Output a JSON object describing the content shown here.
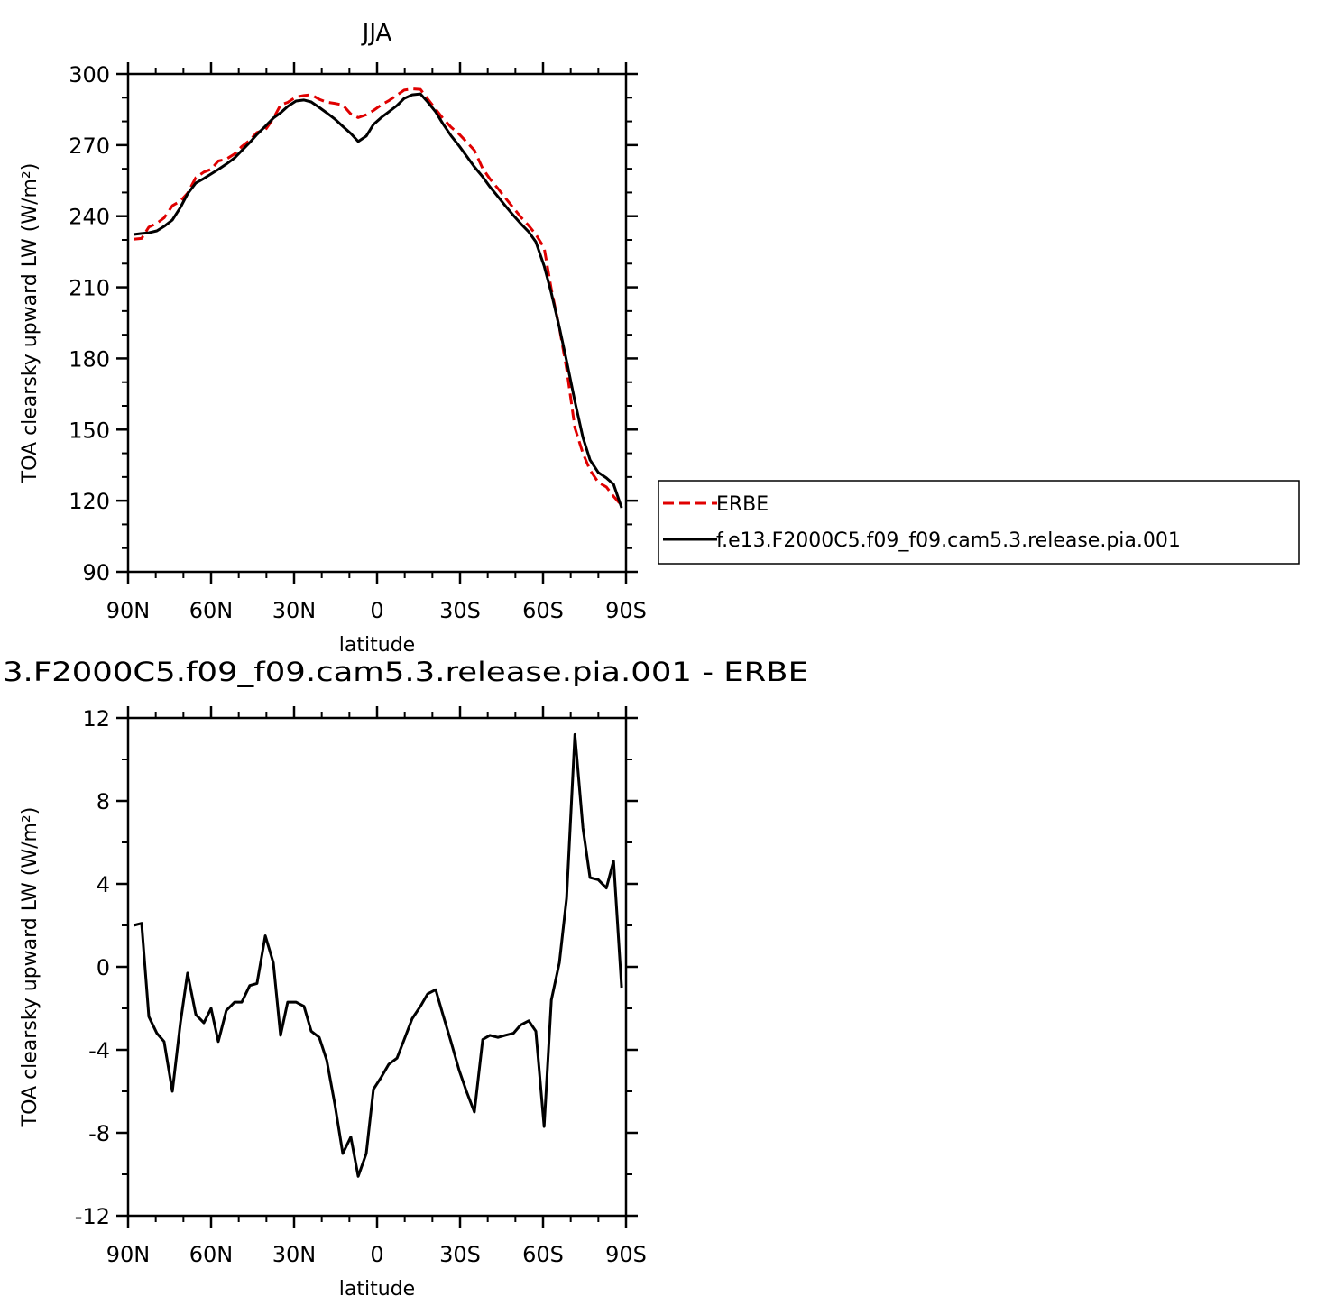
{
  "chart_data": [
    {
      "type": "line",
      "title": "JJA",
      "xlabel": "latitude",
      "ylabel": "TOA clearsky upward LW (W/m²)",
      "x": [
        88,
        85.1,
        82.5,
        79.6,
        77,
        74,
        71.1,
        68.5,
        65.5,
        62.6,
        60,
        57.4,
        54.5,
        51.5,
        48.9,
        46,
        43.4,
        40.4,
        37.5,
        34.9,
        32.3,
        29.3,
        26.4,
        23.8,
        20.9,
        18.2,
        15.3,
        12.4,
        9.5,
        6.8,
        3.9,
        1.3,
        -1.6,
        -4.2,
        -7.2,
        -9.8,
        -12.7,
        -15.7,
        -18.3,
        -21.2,
        -23.8,
        -26.7,
        -29.7,
        -32.3,
        -35.2,
        -38.2,
        -40.8,
        -43.7,
        -46.3,
        -49.3,
        -51.9,
        -54.8,
        -57.4,
        -60.4,
        -63,
        -65.9,
        -68.5,
        -71.5,
        -74.4,
        -77,
        -80,
        -82.9,
        -85.5,
        -88.4
      ],
      "series": [
        {
          "name": "ERBE",
          "color": "#e00000",
          "style": "dashed",
          "values": [
            230.3,
            230.6,
            235.4,
            237,
            239.3,
            244.4,
            246.4,
            249.7,
            256.3,
            258.6,
            259.8,
            263.3,
            264.1,
            266.3,
            269.4,
            272,
            275.3,
            276.4,
            281.2,
            286.9,
            288,
            290.3,
            290.9,
            291.3,
            289.3,
            288.1,
            287.6,
            286.9,
            283.1,
            281.6,
            282.8,
            284.6,
            287,
            288.7,
            291.1,
            293.2,
            293.7,
            293.5,
            289.5,
            285.1,
            281.3,
            277.6,
            274.6,
            271.4,
            267.8,
            260.1,
            255.7,
            251.7,
            247.8,
            243.5,
            239.7,
            236,
            232.3,
            226.7,
            209.2,
            192.9,
            175.7,
            150.7,
            140,
            132.9,
            127.7,
            125.8,
            121.8,
            118
          ]
        },
        {
          "name": "f.e13.F2000C5.f09_f09.cam5.3.release.pia.001",
          "color": "#000000",
          "style": "solid",
          "values": [
            232.3,
            232.7,
            233,
            233.8,
            235.7,
            238.4,
            243.7,
            249.4,
            254,
            255.9,
            257.8,
            259.7,
            262,
            264.6,
            267.7,
            271.1,
            274.5,
            277.9,
            281.4,
            283.6,
            286.3,
            288.6,
            289,
            288.2,
            285.9,
            283.6,
            281,
            277.9,
            274.9,
            271.5,
            273.8,
            278.7,
            281.7,
            284,
            286.7,
            289.7,
            291.2,
            291.6,
            288.2,
            284,
            279,
            274,
            269.6,
            265.4,
            260.8,
            256.6,
            252.4,
            248.3,
            244.5,
            240.3,
            236.9,
            233.4,
            229.2,
            219,
            207.6,
            193.1,
            179,
            161.9,
            146.7,
            137.2,
            131.9,
            129.6,
            126.9,
            117
          ]
        }
      ],
      "xlim": [
        90,
        -90
      ],
      "xticks": [
        {
          "value": 90,
          "label": "90N"
        },
        {
          "value": 60,
          "label": "60N"
        },
        {
          "value": 30,
          "label": "30N"
        },
        0,
        {
          "value": -30,
          "label": "30S"
        },
        {
          "value": -60,
          "label": "60S"
        },
        {
          "value": -90,
          "label": "90S"
        }
      ],
      "xminorticks": [
        80,
        70,
        50,
        40,
        20,
        10,
        -10,
        -20,
        -40,
        -50,
        -70,
        -80
      ],
      "ylim": [
        90,
        300
      ],
      "yticks": [
        90,
        120,
        150,
        180,
        210,
        240,
        270,
        300
      ],
      "yminorticks": [
        100,
        110,
        130,
        140,
        160,
        170,
        190,
        200,
        220,
        230,
        250,
        260,
        280,
        290
      ],
      "legend": "right"
    },
    {
      "type": "line",
      "title": "3.F2000C5.f09_f09.cam5.3.release.pia.001 - ERBE",
      "xlabel": "latitude",
      "ylabel": "TOA clearsky upward LW (W/m²)",
      "x": [
        88,
        85.1,
        82.5,
        79.6,
        77,
        74,
        71.1,
        68.5,
        65.5,
        62.6,
        60,
        57.4,
        54.5,
        51.5,
        48.9,
        46,
        43.4,
        40.4,
        37.5,
        34.9,
        32.3,
        29.3,
        26.4,
        23.8,
        20.9,
        18.2,
        15.3,
        12.4,
        9.5,
        6.8,
        3.9,
        1.3,
        -1.6,
        -4.2,
        -7.2,
        -9.8,
        -12.7,
        -15.7,
        -18.3,
        -21.2,
        -23.8,
        -26.7,
        -29.7,
        -32.3,
        -35.2,
        -38.2,
        -40.8,
        -43.7,
        -46.3,
        -49.3,
        -51.9,
        -54.8,
        -57.4,
        -60.4,
        -63,
        -65.9,
        -68.5,
        -71.5,
        -74.4,
        -77,
        -80,
        -82.9,
        -85.5,
        -88.4
      ],
      "series": [
        {
          "color": "#000000",
          "style": "solid",
          "values": [
            2,
            2.1,
            -2.4,
            -3.2,
            -3.6,
            -6,
            -2.7,
            -0.3,
            -2.3,
            -2.7,
            -2,
            -3.6,
            -2.1,
            -1.7,
            -1.7,
            -0.9,
            -0.8,
            1.5,
            0.2,
            -3.3,
            -1.7,
            -1.7,
            -1.9,
            -3.1,
            -3.4,
            -4.5,
            -6.6,
            -9,
            -8.2,
            -10.1,
            -9,
            -5.9,
            -5.3,
            -4.7,
            -4.4,
            -3.5,
            -2.5,
            -1.9,
            -1.3,
            -1.1,
            -2.3,
            -3.6,
            -5,
            -6,
            -7,
            -3.5,
            -3.3,
            -3.4,
            -3.3,
            -3.2,
            -2.8,
            -2.6,
            -3.1,
            -7.7,
            -1.6,
            0.2,
            3.3,
            11.2,
            6.7,
            4.3,
            4.2,
            3.8,
            5.1,
            -1
          ]
        }
      ],
      "xlim": [
        90,
        -90
      ],
      "xticks": [
        {
          "value": 90,
          "label": "90N"
        },
        {
          "value": 60,
          "label": "60N"
        },
        {
          "value": 30,
          "label": "30N"
        },
        0,
        {
          "value": -30,
          "label": "30S"
        },
        {
          "value": -60,
          "label": "60S"
        },
        {
          "value": -90,
          "label": "90S"
        }
      ],
      "xminorticks": [
        80,
        70,
        50,
        40,
        20,
        10,
        -10,
        -20,
        -40,
        -50,
        -70,
        -80
      ],
      "ylim": [
        -12,
        12
      ],
      "yticks": [
        -12,
        -8,
        -4,
        0,
        4,
        8,
        12
      ],
      "yminorticks": [
        -10,
        -6,
        -2,
        2,
        6,
        10
      ]
    }
  ]
}
